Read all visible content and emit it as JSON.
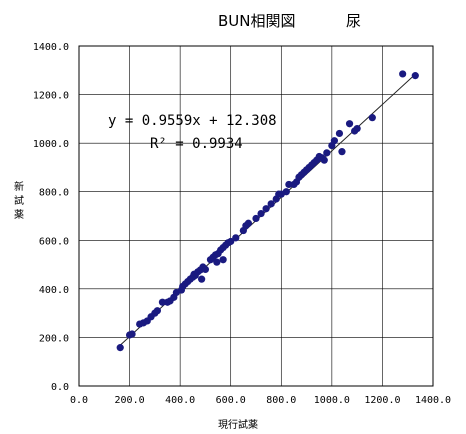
{
  "chart_data": {
    "type": "scatter",
    "title": "BUN相関図",
    "subtitle": "尿",
    "xlabel": "現行試薬",
    "ylabel": "新試薬",
    "xlim": [
      0,
      1400
    ],
    "ylim": [
      0,
      1400
    ],
    "x_ticks": [
      "0.0",
      "200.0",
      "400.0",
      "600.0",
      "800.0",
      "1000.0",
      "1200.0",
      "1400.0"
    ],
    "y_ticks": [
      "0.0",
      "200.0",
      "400.0",
      "600.0",
      "800.0",
      "1000.0",
      "1200.0",
      "1400.0"
    ],
    "grid": true,
    "marker_color": "#1a1a80",
    "trendline": {
      "slope": 0.9559,
      "intercept": 12.308,
      "x_range": [
        160,
        1330
      ]
    },
    "equation": "y = 0.9559x + 12.308",
    "r_squared": "R² = 0.9934",
    "points": [
      [
        163,
        158
      ],
      [
        200,
        210
      ],
      [
        210,
        214
      ],
      [
        240,
        255
      ],
      [
        255,
        260
      ],
      [
        270,
        268
      ],
      [
        285,
        285
      ],
      [
        300,
        300
      ],
      [
        310,
        310
      ],
      [
        330,
        345
      ],
      [
        350,
        345
      ],
      [
        360,
        350
      ],
      [
        375,
        365
      ],
      [
        385,
        385
      ],
      [
        405,
        395
      ],
      [
        410,
        410
      ],
      [
        420,
        420
      ],
      [
        430,
        430
      ],
      [
        440,
        440
      ],
      [
        450,
        448
      ],
      [
        455,
        460
      ],
      [
        460,
        455
      ],
      [
        470,
        470
      ],
      [
        480,
        478
      ],
      [
        490,
        490
      ],
      [
        485,
        440
      ],
      [
        500,
        480
      ],
      [
        520,
        520
      ],
      [
        530,
        530
      ],
      [
        540,
        540
      ],
      [
        550,
        545
      ],
      [
        560,
        560
      ],
      [
        570,
        570
      ],
      [
        580,
        580
      ],
      [
        590,
        590
      ],
      [
        600,
        595
      ],
      [
        545,
        510
      ],
      [
        570,
        520
      ],
      [
        620,
        610
      ],
      [
        650,
        640
      ],
      [
        660,
        660
      ],
      [
        670,
        670
      ],
      [
        700,
        690
      ],
      [
        720,
        710
      ],
      [
        740,
        730
      ],
      [
        760,
        750
      ],
      [
        780,
        770
      ],
      [
        790,
        790
      ],
      [
        800,
        790
      ],
      [
        820,
        800
      ],
      [
        830,
        830
      ],
      [
        850,
        830
      ],
      [
        860,
        840
      ],
      [
        870,
        860
      ],
      [
        880,
        870
      ],
      [
        890,
        880
      ],
      [
        900,
        890
      ],
      [
        910,
        900
      ],
      [
        920,
        910
      ],
      [
        930,
        920
      ],
      [
        940,
        930
      ],
      [
        950,
        945
      ],
      [
        960,
        940
      ],
      [
        970,
        930
      ],
      [
        980,
        960
      ],
      [
        1000,
        990
      ],
      [
        1010,
        1010
      ],
      [
        1030,
        1040
      ],
      [
        1040,
        965
      ],
      [
        1070,
        1080
      ],
      [
        1090,
        1050
      ],
      [
        1100,
        1060
      ],
      [
        1160,
        1105
      ],
      [
        1280,
        1285
      ],
      [
        1330,
        1278
      ]
    ]
  }
}
